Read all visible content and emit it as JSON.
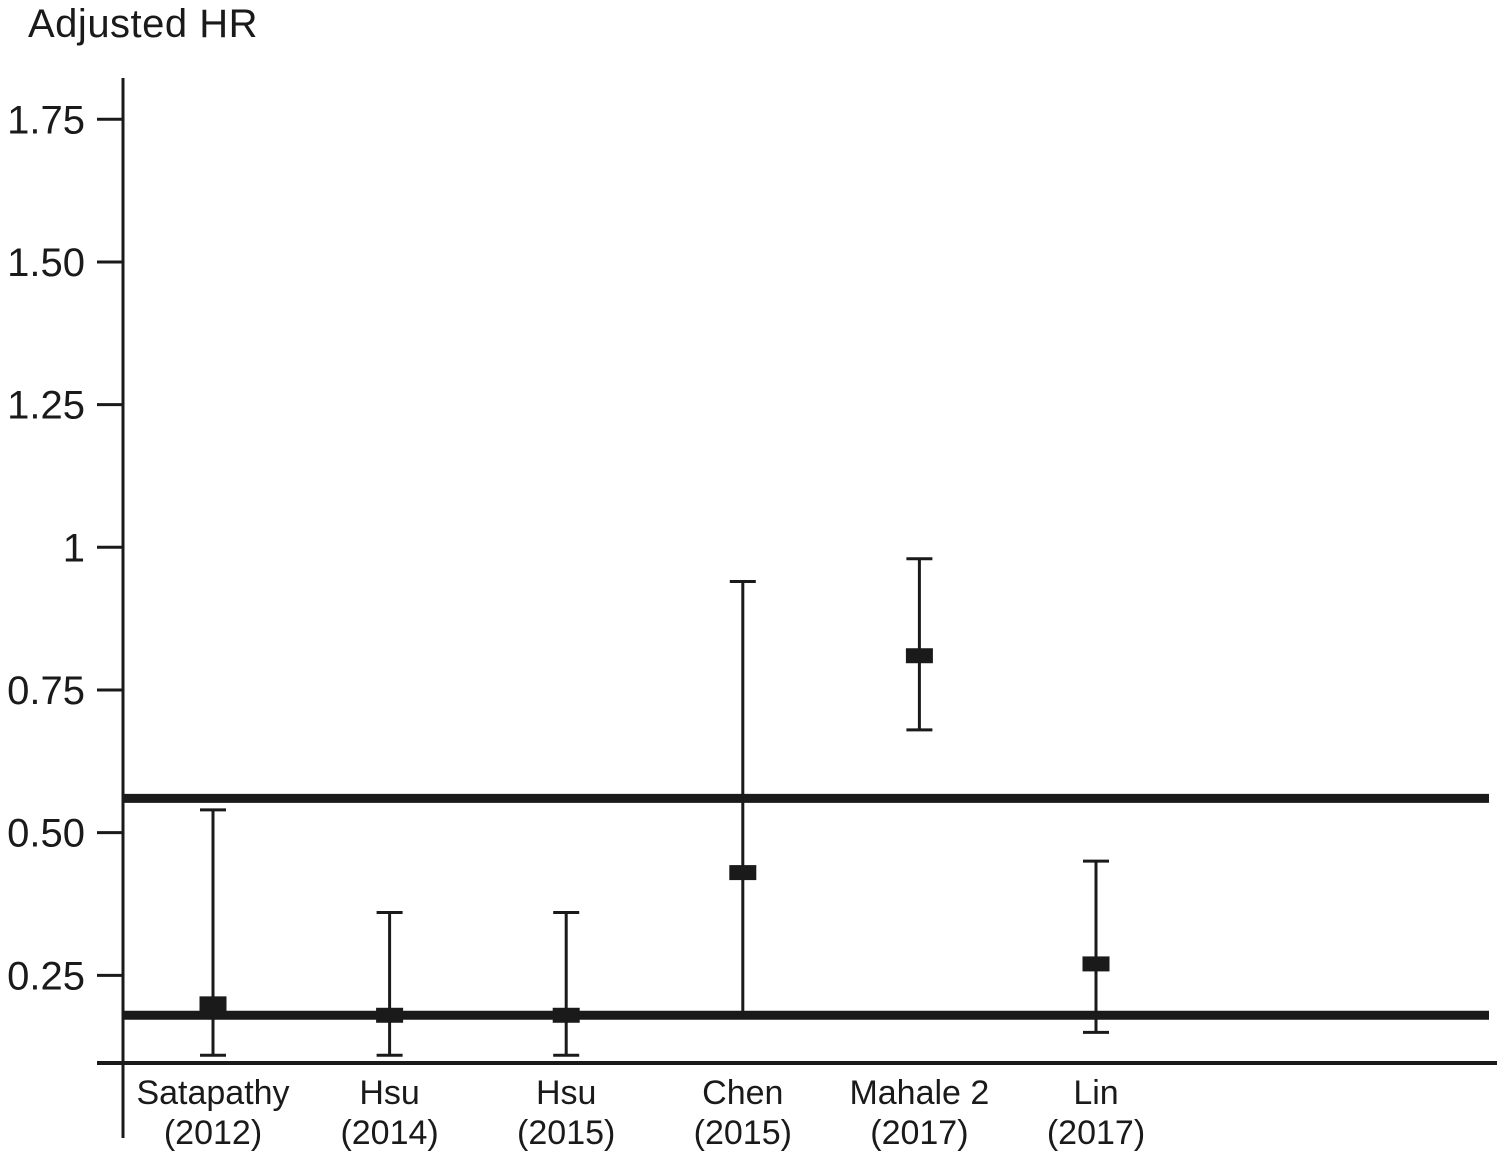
{
  "figure": {
    "title": "Adjusted HR"
  },
  "colors": {
    "ink": "#1a1a1a",
    "background": "#ffffff"
  },
  "chart_data": {
    "type": "scatter",
    "variant": "forest-plot-error-bars",
    "title": "Adjusted HR",
    "ylabel": "Adjusted HR",
    "xlabel": "",
    "grid": false,
    "legend": false,
    "y_axis_range_shown": [
      0.25,
      1.75
    ],
    "y_ticks": [
      {
        "value": 1.75,
        "label": "1.75"
      },
      {
        "value": 1.5,
        "label": "1.50"
      },
      {
        "value": 1.25,
        "label": "1.25"
      },
      {
        "value": 1.0,
        "label": "1"
      },
      {
        "value": 0.75,
        "label": "0.75"
      },
      {
        "value": 0.5,
        "label": "0.50"
      },
      {
        "value": 0.25,
        "label": "0.25"
      }
    ],
    "reference_lines": [
      {
        "value": 0.56,
        "description": "upper thick horizontal reference line"
      },
      {
        "value": 0.18,
        "description": "lower thick horizontal reference line"
      }
    ],
    "categories": [
      "Satapathy (2012)",
      "Hsu (2014)",
      "Hsu (2015)",
      "Chen (2015)",
      "Mahale 2 (2017)",
      "Lin (2017)"
    ],
    "studies": [
      {
        "name": "Satapathy",
        "year": "(2012)",
        "adjusted_hr": 0.2,
        "ci_low": 0.11,
        "ci_high": 0.54,
        "draw_low_cap": true
      },
      {
        "name": "Hsu",
        "year": "(2014)",
        "adjusted_hr": 0.18,
        "ci_low": 0.11,
        "ci_high": 0.36,
        "draw_low_cap": true
      },
      {
        "name": "Hsu",
        "year": "(2015)",
        "adjusted_hr": 0.18,
        "ci_low": 0.11,
        "ci_high": 0.36,
        "draw_low_cap": true
      },
      {
        "name": "Chen",
        "year": "(2015)",
        "adjusted_hr": 0.43,
        "ci_low": 0.18,
        "ci_high": 0.94,
        "draw_low_cap": false
      },
      {
        "name": "Mahale 2",
        "year": "(2017)",
        "adjusted_hr": 0.81,
        "ci_low": 0.68,
        "ci_high": 0.98,
        "draw_low_cap": true
      },
      {
        "name": "Lin",
        "year": "(2017)",
        "adjusted_hr": 0.27,
        "ci_low": 0.15,
        "ci_high": 0.45,
        "draw_low_cap": true
      }
    ]
  }
}
